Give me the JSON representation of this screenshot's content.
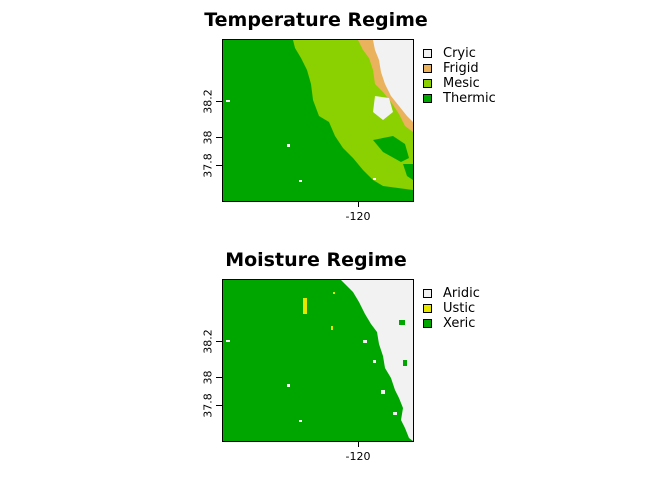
{
  "maps": [
    {
      "title": "Temperature Regime",
      "y_ticks": [
        "38.2",
        "38",
        "37.8"
      ],
      "x_ticks": [
        "-120"
      ],
      "legend": [
        {
          "label": "Cryic",
          "color": "#f2f2f2"
        },
        {
          "label": "Frigid",
          "color": "#ebb25e"
        },
        {
          "label": "Mesic",
          "color": "#8bd000"
        },
        {
          "label": "Thermic",
          "color": "#00a600"
        }
      ]
    },
    {
      "title": "Moisture Regime",
      "y_ticks": [
        "38.2",
        "38",
        "37.8"
      ],
      "x_ticks": [
        "-120"
      ],
      "legend": [
        {
          "label": "Aridic",
          "color": "#f2f2f2"
        },
        {
          "label": "Ustic",
          "color": "#e6e600"
        },
        {
          "label": "Xeric",
          "color": "#00a600"
        }
      ]
    }
  ]
}
